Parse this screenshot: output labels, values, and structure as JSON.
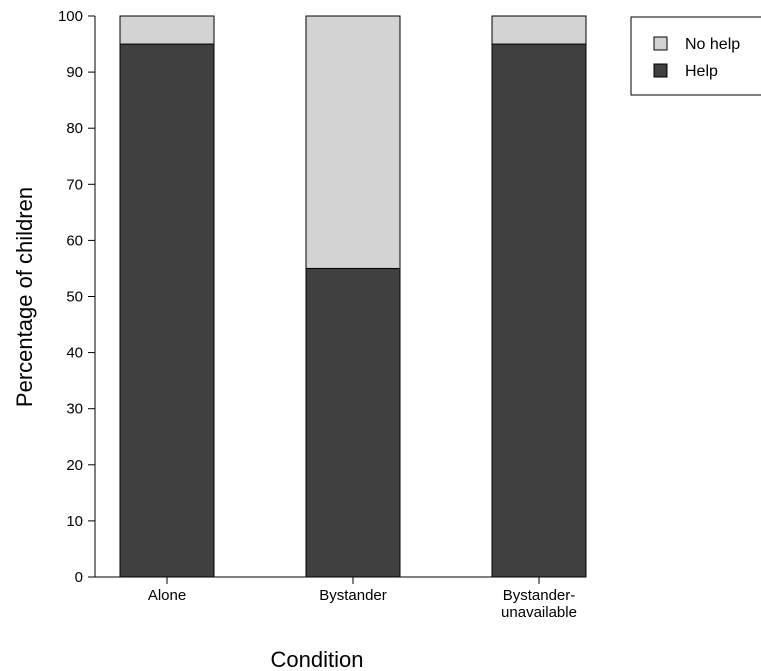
{
  "chart_data": {
    "type": "bar",
    "stacked": true,
    "title": "",
    "categories": [
      [
        "Alone"
      ],
      [
        "Bystander"
      ],
      [
        "Bystander-",
        "unavailable"
      ]
    ],
    "series": [
      {
        "name": "Help",
        "values": [
          95,
          55,
          95
        ],
        "color": "#404040"
      },
      {
        "name": "No help",
        "values": [
          5,
          45,
          5
        ],
        "color": "#d3d3d3"
      }
    ],
    "legend_order": [
      "No help",
      "Help"
    ],
    "xlabel": "Condition",
    "ylabel": "Percentage of children",
    "ylim": [
      0,
      100
    ],
    "yticks": [
      0,
      10,
      20,
      30,
      40,
      50,
      60,
      70,
      80,
      90,
      100
    ],
    "legend_position": "top-right",
    "grid": false
  }
}
